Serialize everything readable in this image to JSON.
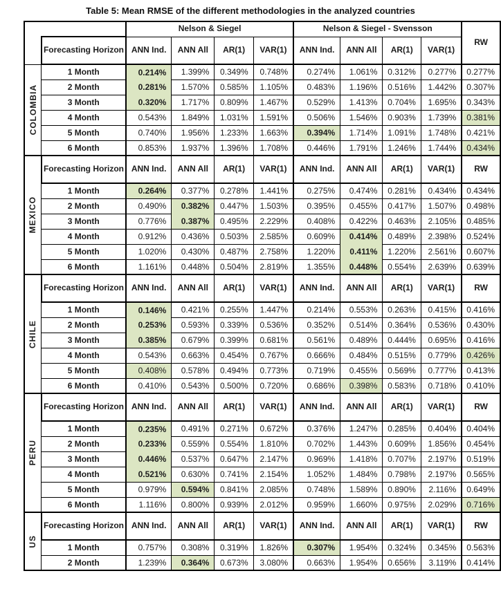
{
  "page_title": "Table 5: Mean RMSE of the different methodologies in the analyzed countries",
  "colors": {
    "highlight": "#dce6c3",
    "border": "#000000",
    "text": "#1c1c1c",
    "background": "#ffffff"
  },
  "table": {
    "group_headers": [
      {
        "label": "Nelson & Siegel",
        "span": 4
      },
      {
        "label": "Nelson & Siegel - Svensson",
        "span": 4
      }
    ],
    "rw_header": "RW",
    "horizon_header": "Forecasting Horizon",
    "method_headers": [
      "ANN Ind.",
      "ANN All",
      "AR(1)",
      "VAR(1)",
      "ANN Ind.",
      "ANN All",
      "AR(1)",
      "VAR(1)"
    ],
    "rw_col_header": "RW",
    "countries": [
      {
        "name": "COLOMBIA",
        "repeat_header": false,
        "rows": [
          {
            "horizon": "1 Month",
            "values": [
              "0.214%",
              "1.399%",
              "0.349%",
              "0.748%",
              "0.274%",
              "1.061%",
              "0.312%",
              "0.277%",
              "0.277%"
            ],
            "highlight": [
              0
            ],
            "bold": [
              0
            ]
          },
          {
            "horizon": "2 Month",
            "values": [
              "0.281%",
              "1.570%",
              "0.585%",
              "1.105%",
              "0.483%",
              "1.196%",
              "0.516%",
              "1.442%",
              "0.307%"
            ],
            "highlight": [
              0
            ],
            "bold": [
              0
            ]
          },
          {
            "horizon": "3 Month",
            "values": [
              "0.320%",
              "1.717%",
              "0.809%",
              "1.467%",
              "0.529%",
              "1.413%",
              "0.704%",
              "1.695%",
              "0.343%"
            ],
            "highlight": [
              0
            ],
            "bold": [
              0
            ]
          },
          {
            "horizon": "4 Month",
            "values": [
              "0.543%",
              "1.849%",
              "1.031%",
              "1.591%",
              "0.506%",
              "1.546%",
              "0.903%",
              "1.739%",
              "0.381%"
            ],
            "highlight": [
              8
            ],
            "bold": []
          },
          {
            "horizon": "5 Month",
            "values": [
              "0.740%",
              "1.956%",
              "1.233%",
              "1.663%",
              "0.394%",
              "1.714%",
              "1.091%",
              "1.748%",
              "0.421%"
            ],
            "highlight": [
              4
            ],
            "bold": [
              4
            ]
          },
          {
            "horizon": "6 Month",
            "values": [
              "0.853%",
              "1.937%",
              "1.396%",
              "1.708%",
              "0.446%",
              "1.791%",
              "1.246%",
              "1.744%",
              "0.434%"
            ],
            "highlight": [
              8
            ],
            "bold": []
          }
        ]
      },
      {
        "name": "MEXICO",
        "repeat_header": true,
        "rows": [
          {
            "horizon": "1 Month",
            "values": [
              "0.264%",
              "0.377%",
              "0.278%",
              "1.441%",
              "0.275%",
              "0.474%",
              "0.281%",
              "0.434%",
              "0.434%"
            ],
            "highlight": [
              0
            ],
            "bold": [
              0
            ]
          },
          {
            "horizon": "2 Month",
            "values": [
              "0.490%",
              "0.382%",
              "0.447%",
              "1.503%",
              "0.395%",
              "0.455%",
              "0.417%",
              "1.507%",
              "0.498%"
            ],
            "highlight": [
              1
            ],
            "bold": [
              1
            ]
          },
          {
            "horizon": "3 Month",
            "values": [
              "0.776%",
              "0.387%",
              "0.495%",
              "2.229%",
              "0.408%",
              "0.422%",
              "0.463%",
              "2.105%",
              "0.485%"
            ],
            "highlight": [
              1
            ],
            "bold": [
              1
            ]
          },
          {
            "horizon": "4 Month",
            "values": [
              "0.912%",
              "0.436%",
              "0.503%",
              "2.585%",
              "0.609%",
              "0.414%",
              "0.489%",
              "2.398%",
              "0.524%"
            ],
            "highlight": [
              5
            ],
            "bold": [
              5
            ]
          },
          {
            "horizon": "5 Month",
            "values": [
              "1.020%",
              "0.430%",
              "0.487%",
              "2.758%",
              "1.220%",
              "0.411%",
              "1.220%",
              "2.561%",
              "0.607%"
            ],
            "highlight": [
              5
            ],
            "bold": [
              5
            ]
          },
          {
            "horizon": "6 Month",
            "values": [
              "1.161%",
              "0.448%",
              "0.504%",
              "2.819%",
              "1.355%",
              "0.448%",
              "0.554%",
              "2.639%",
              "0.639%"
            ],
            "highlight": [
              5
            ],
            "bold": [
              5
            ]
          }
        ]
      },
      {
        "name": "CHILE",
        "repeat_header": true,
        "rows": [
          {
            "horizon": "1 Month",
            "values": [
              "0.146%",
              "0.421%",
              "0.255%",
              "1.447%",
              "0.214%",
              "0.553%",
              "0.263%",
              "0.415%",
              "0.416%"
            ],
            "highlight": [
              0
            ],
            "bold": [
              0
            ]
          },
          {
            "horizon": "2 Month",
            "values": [
              "0.253%",
              "0.593%",
              "0.339%",
              "0.536%",
              "0.352%",
              "0.514%",
              "0.364%",
              "0.536%",
              "0.430%"
            ],
            "highlight": [
              0
            ],
            "bold": [
              0
            ]
          },
          {
            "horizon": "3 Month",
            "values": [
              "0.385%",
              "0.679%",
              "0.399%",
              "0.681%",
              "0.561%",
              "0.489%",
              "0.444%",
              "0.695%",
              "0.416%"
            ],
            "highlight": [
              0
            ],
            "bold": [
              0
            ]
          },
          {
            "horizon": "4 Month",
            "values": [
              "0.543%",
              "0.663%",
              "0.454%",
              "0.767%",
              "0.666%",
              "0.484%",
              "0.515%",
              "0.779%",
              "0.426%"
            ],
            "highlight": [
              8
            ],
            "bold": []
          },
          {
            "horizon": "5 Month",
            "values": [
              "0.408%",
              "0.578%",
              "0.494%",
              "0.773%",
              "0.719%",
              "0.455%",
              "0.569%",
              "0.777%",
              "0.413%"
            ],
            "highlight": [
              0
            ],
            "bold": []
          },
          {
            "horizon": "6 Month",
            "values": [
              "0.410%",
              "0.543%",
              "0.500%",
              "0.720%",
              "0.686%",
              "0.398%",
              "0.583%",
              "0.718%",
              "0.410%"
            ],
            "highlight": [
              5
            ],
            "bold": []
          }
        ]
      },
      {
        "name": "PERU",
        "repeat_header": true,
        "rows": [
          {
            "horizon": "1 Month",
            "values": [
              "0.235%",
              "0.491%",
              "0.271%",
              "0.672%",
              "0.376%",
              "1.247%",
              "0.285%",
              "0.404%",
              "0.404%"
            ],
            "highlight": [
              0
            ],
            "bold": [
              0
            ]
          },
          {
            "horizon": "2 Month",
            "values": [
              "0.233%",
              "0.559%",
              "0.554%",
              "1.810%",
              "0.702%",
              "1.443%",
              "0.609%",
              "1.856%",
              "0.454%"
            ],
            "highlight": [
              0
            ],
            "bold": [
              0
            ]
          },
          {
            "horizon": "3 Month",
            "values": [
              "0.446%",
              "0.537%",
              "0.647%",
              "2.147%",
              "0.969%",
              "1.418%",
              "0.707%",
              "2.197%",
              "0.519%"
            ],
            "highlight": [
              0
            ],
            "bold": [
              0
            ]
          },
          {
            "horizon": "4 Month",
            "values": [
              "0.521%",
              "0.630%",
              "0.741%",
              "2.154%",
              "1.052%",
              "1.484%",
              "0.798%",
              "2.197%",
              "0.565%"
            ],
            "highlight": [
              0
            ],
            "bold": [
              0
            ]
          },
          {
            "horizon": "5 Month",
            "values": [
              "0.979%",
              "0.594%",
              "0.841%",
              "2.085%",
              "0.748%",
              "1.589%",
              "0.890%",
              "2.116%",
              "0.649%"
            ],
            "highlight": [
              1
            ],
            "bold": [
              1
            ]
          },
          {
            "horizon": "6 Month",
            "values": [
              "1.116%",
              "0.800%",
              "0.939%",
              "2.012%",
              "0.959%",
              "1.660%",
              "0.975%",
              "2.029%",
              "0.716%"
            ],
            "highlight": [
              8
            ],
            "bold": []
          }
        ]
      },
      {
        "name": "US",
        "repeat_header": true,
        "rows": [
          {
            "horizon": "1 Month",
            "values": [
              "0.757%",
              "0.308%",
              "0.319%",
              "1.826%",
              "0.307%",
              "1.954%",
              "0.324%",
              "0.345%",
              "0.563%"
            ],
            "highlight": [
              4
            ],
            "bold": [
              4
            ]
          },
          {
            "horizon": "2 Month",
            "values": [
              "1.239%",
              "0.364%",
              "0.673%",
              "3.080%",
              "0.663%",
              "1.954%",
              "0.656%",
              "3.119%",
              "0.414%"
            ],
            "highlight": [
              1
            ],
            "bold": [
              1
            ]
          }
        ]
      }
    ]
  }
}
